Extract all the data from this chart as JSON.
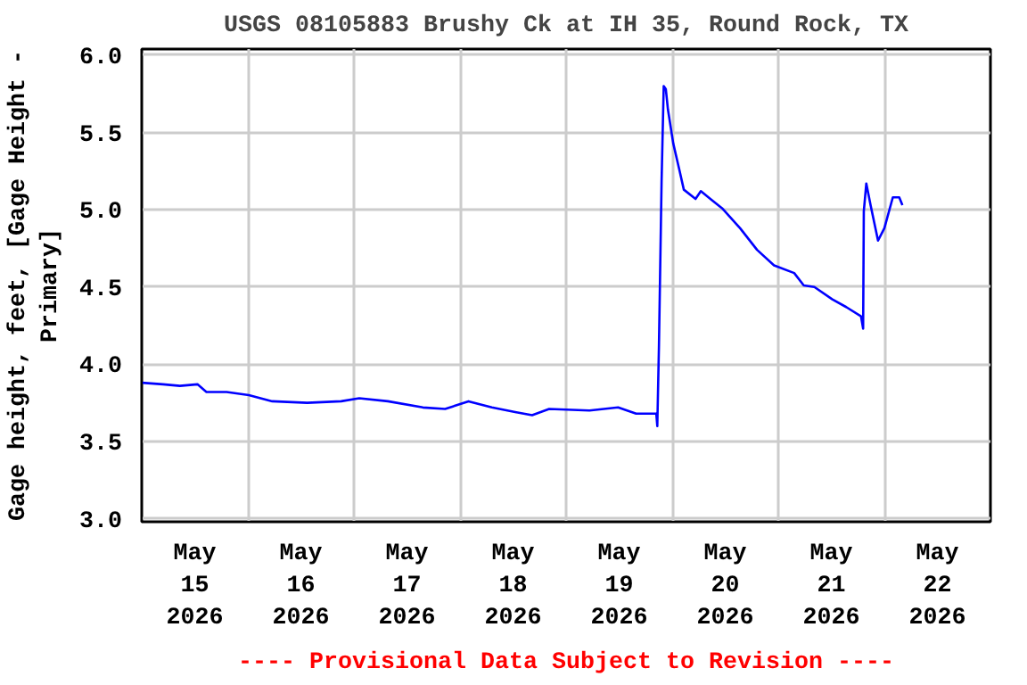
{
  "chart_data": {
    "type": "line",
    "title": "USGS 08105883 Brushy Ck at IH 35, Round Rock, TX",
    "ylabel": "Gage height, feet, [Gage Height -\nPrimary]",
    "annotations": [
      "---- Provisional Data Subject to Revision ----"
    ],
    "x": [
      "2026-05-15T00:05",
      "2026-05-15T04:48",
      "2026-05-15T08:38",
      "2026-05-15T12:36",
      "2026-05-15T14:38",
      "2026-05-15T19:12",
      "2026-05-16T00:14",
      "2026-05-16T05:31",
      "2026-05-16T13:26",
      "2026-05-16T21:07",
      "2026-05-17T01:12",
      "2026-05-17T07:41",
      "2026-05-17T15:36",
      "2026-05-17T20:38",
      "2026-05-18T01:55",
      "2026-05-18T07:12",
      "2026-05-18T12:29",
      "2026-05-18T16:19",
      "2026-05-18T20:10",
      "2026-05-19T05:17",
      "2026-05-19T11:46",
      "2026-05-19T15:50",
      "2026-05-19T20:24",
      "2026-05-19T20:38",
      "2026-05-19T21:00",
      "2026-05-19T21:36",
      "2026-05-19T22:05",
      "2026-05-19T22:34",
      "2026-05-19T23:02",
      "2026-05-20T00:14",
      "2026-05-20T01:41",
      "2026-05-20T02:38",
      "2026-05-20T05:17",
      "2026-05-20T06:29",
      "2026-05-20T08:38",
      "2026-05-20T11:17",
      "2026-05-20T15:22",
      "2026-05-20T19:12",
      "2026-05-20T23:02",
      "2026-05-21T03:36",
      "2026-05-21T05:46",
      "2026-05-21T08:10",
      "2026-05-21T12:14",
      "2026-05-21T15:22",
      "2026-05-21T18:43",
      "2026-05-21T19:12",
      "2026-05-21T19:21",
      "2026-05-21T19:55",
      "2026-05-21T20:53",
      "2026-05-21T22:34",
      "2026-05-22T00:00",
      "2026-05-22T01:55",
      "2026-05-22T03:22",
      "2026-05-22T04:05"
    ],
    "series": [
      {
        "color": "#0000ff",
        "values": [
          3.88,
          3.87,
          3.86,
          3.87,
          3.82,
          3.82,
          3.8,
          3.76,
          3.75,
          3.76,
          3.78,
          3.76,
          3.72,
          3.71,
          3.76,
          3.72,
          3.69,
          3.67,
          3.71,
          3.7,
          3.72,
          3.68,
          3.68,
          3.6,
          4.11,
          5.18,
          5.8,
          5.78,
          5.65,
          5.43,
          5.25,
          5.13,
          5.07,
          5.12,
          5.07,
          5.01,
          4.88,
          4.74,
          4.64,
          4.59,
          4.51,
          4.5,
          4.42,
          4.37,
          4.31,
          4.23,
          4.99,
          5.17,
          5.03,
          4.8,
          4.88,
          5.08,
          5.08,
          5.03
        ]
      }
    ],
    "xlim": [
      "2026-05-15",
      "2026-05-23"
    ],
    "xticks": [
      {
        "value": "2026-05-15T12:00",
        "label": "May\n15\n2026"
      },
      {
        "value": "2026-05-16T12:00",
        "label": "May\n16\n2026"
      },
      {
        "value": "2026-05-17T12:00",
        "label": "May\n17\n2026"
      },
      {
        "value": "2026-05-18T12:00",
        "label": "May\n18\n2026"
      },
      {
        "value": "2026-05-19T12:00",
        "label": "May\n19\n2026"
      },
      {
        "value": "2026-05-20T12:00",
        "label": "May\n20\n2026"
      },
      {
        "value": "2026-05-21T12:00",
        "label": "May\n21\n2026"
      },
      {
        "value": "2026-05-22T12:00",
        "label": "May\n22\n2026"
      },
      {
        "value": "2026-05-16",
        "label": null
      },
      {
        "value": "2026-05-17",
        "label": null
      },
      {
        "value": "2026-05-18",
        "label": null
      },
      {
        "value": "2026-05-19",
        "label": null
      },
      {
        "value": "2026-05-20",
        "label": null
      },
      {
        "value": "2026-05-21",
        "label": null
      },
      {
        "value": "2026-05-22",
        "label": null
      }
    ],
    "ylim": [
      2.98,
      6.04
    ],
    "yticks": [
      {
        "value": 3,
        "label": "3.0"
      },
      3.5,
      {
        "value": 4,
        "label": "4.0"
      },
      4.5,
      {
        "value": 5,
        "label": "5.0"
      },
      5.5,
      {
        "value": 6,
        "label": "6.0"
      }
    ],
    "grid": true,
    "line_style": "solid"
  }
}
